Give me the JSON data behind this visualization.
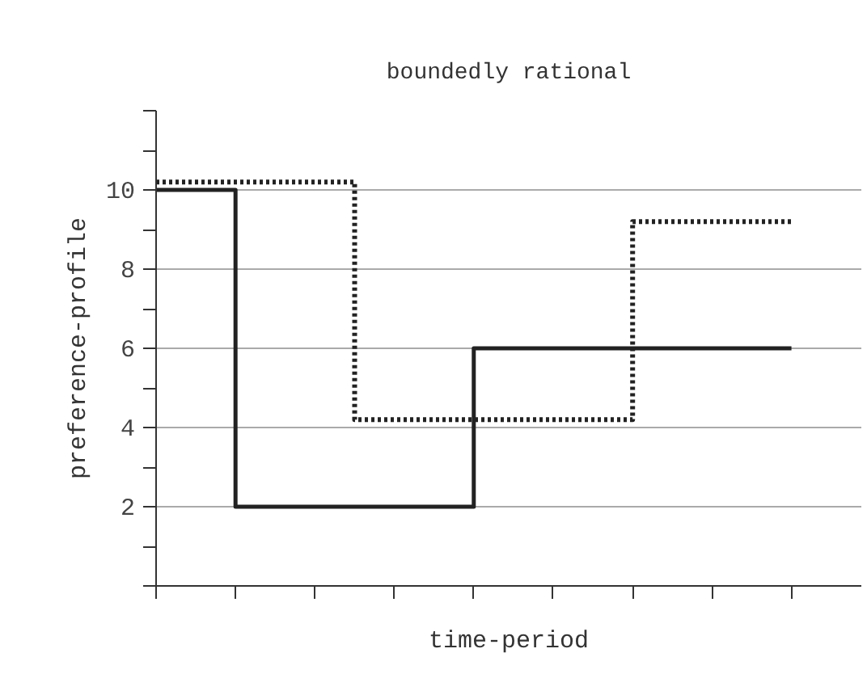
{
  "chart_data": {
    "type": "step",
    "title": "boundedly rational",
    "xlabel": "time-period",
    "ylabel": "preference-profile",
    "categories": [
      null,
      null,
      null,
      null,
      null,
      null,
      null,
      null,
      null,
      null,
      null,
      null,
      null,
      null,
      null,
      null,
      null
    ],
    "ylim": [
      0,
      12
    ],
    "yticks": [
      {
        "value": 0,
        "label": null
      },
      2,
      4,
      6,
      8,
      10,
      {
        "value": 12,
        "label": null
      }
    ],
    "grid": "y",
    "tick_labels": "y",
    "series": [
      {
        "color": "#222222",
        "line_style": "solid",
        "values": [
          10,
          10,
          2,
          2,
          2,
          2,
          2,
          2,
          6,
          6,
          6,
          6,
          6,
          6,
          6,
          6,
          6
        ]
      },
      {
        "color": "#222222",
        "line_style": "dotted",
        "values": [
          10.2,
          10.2,
          10.2,
          10.2,
          10.2,
          4.2,
          4.2,
          4.2,
          4.2,
          4.2,
          4.2,
          4.2,
          9.2,
          9.2,
          9.2,
          9.2,
          9.2
        ]
      }
    ]
  }
}
